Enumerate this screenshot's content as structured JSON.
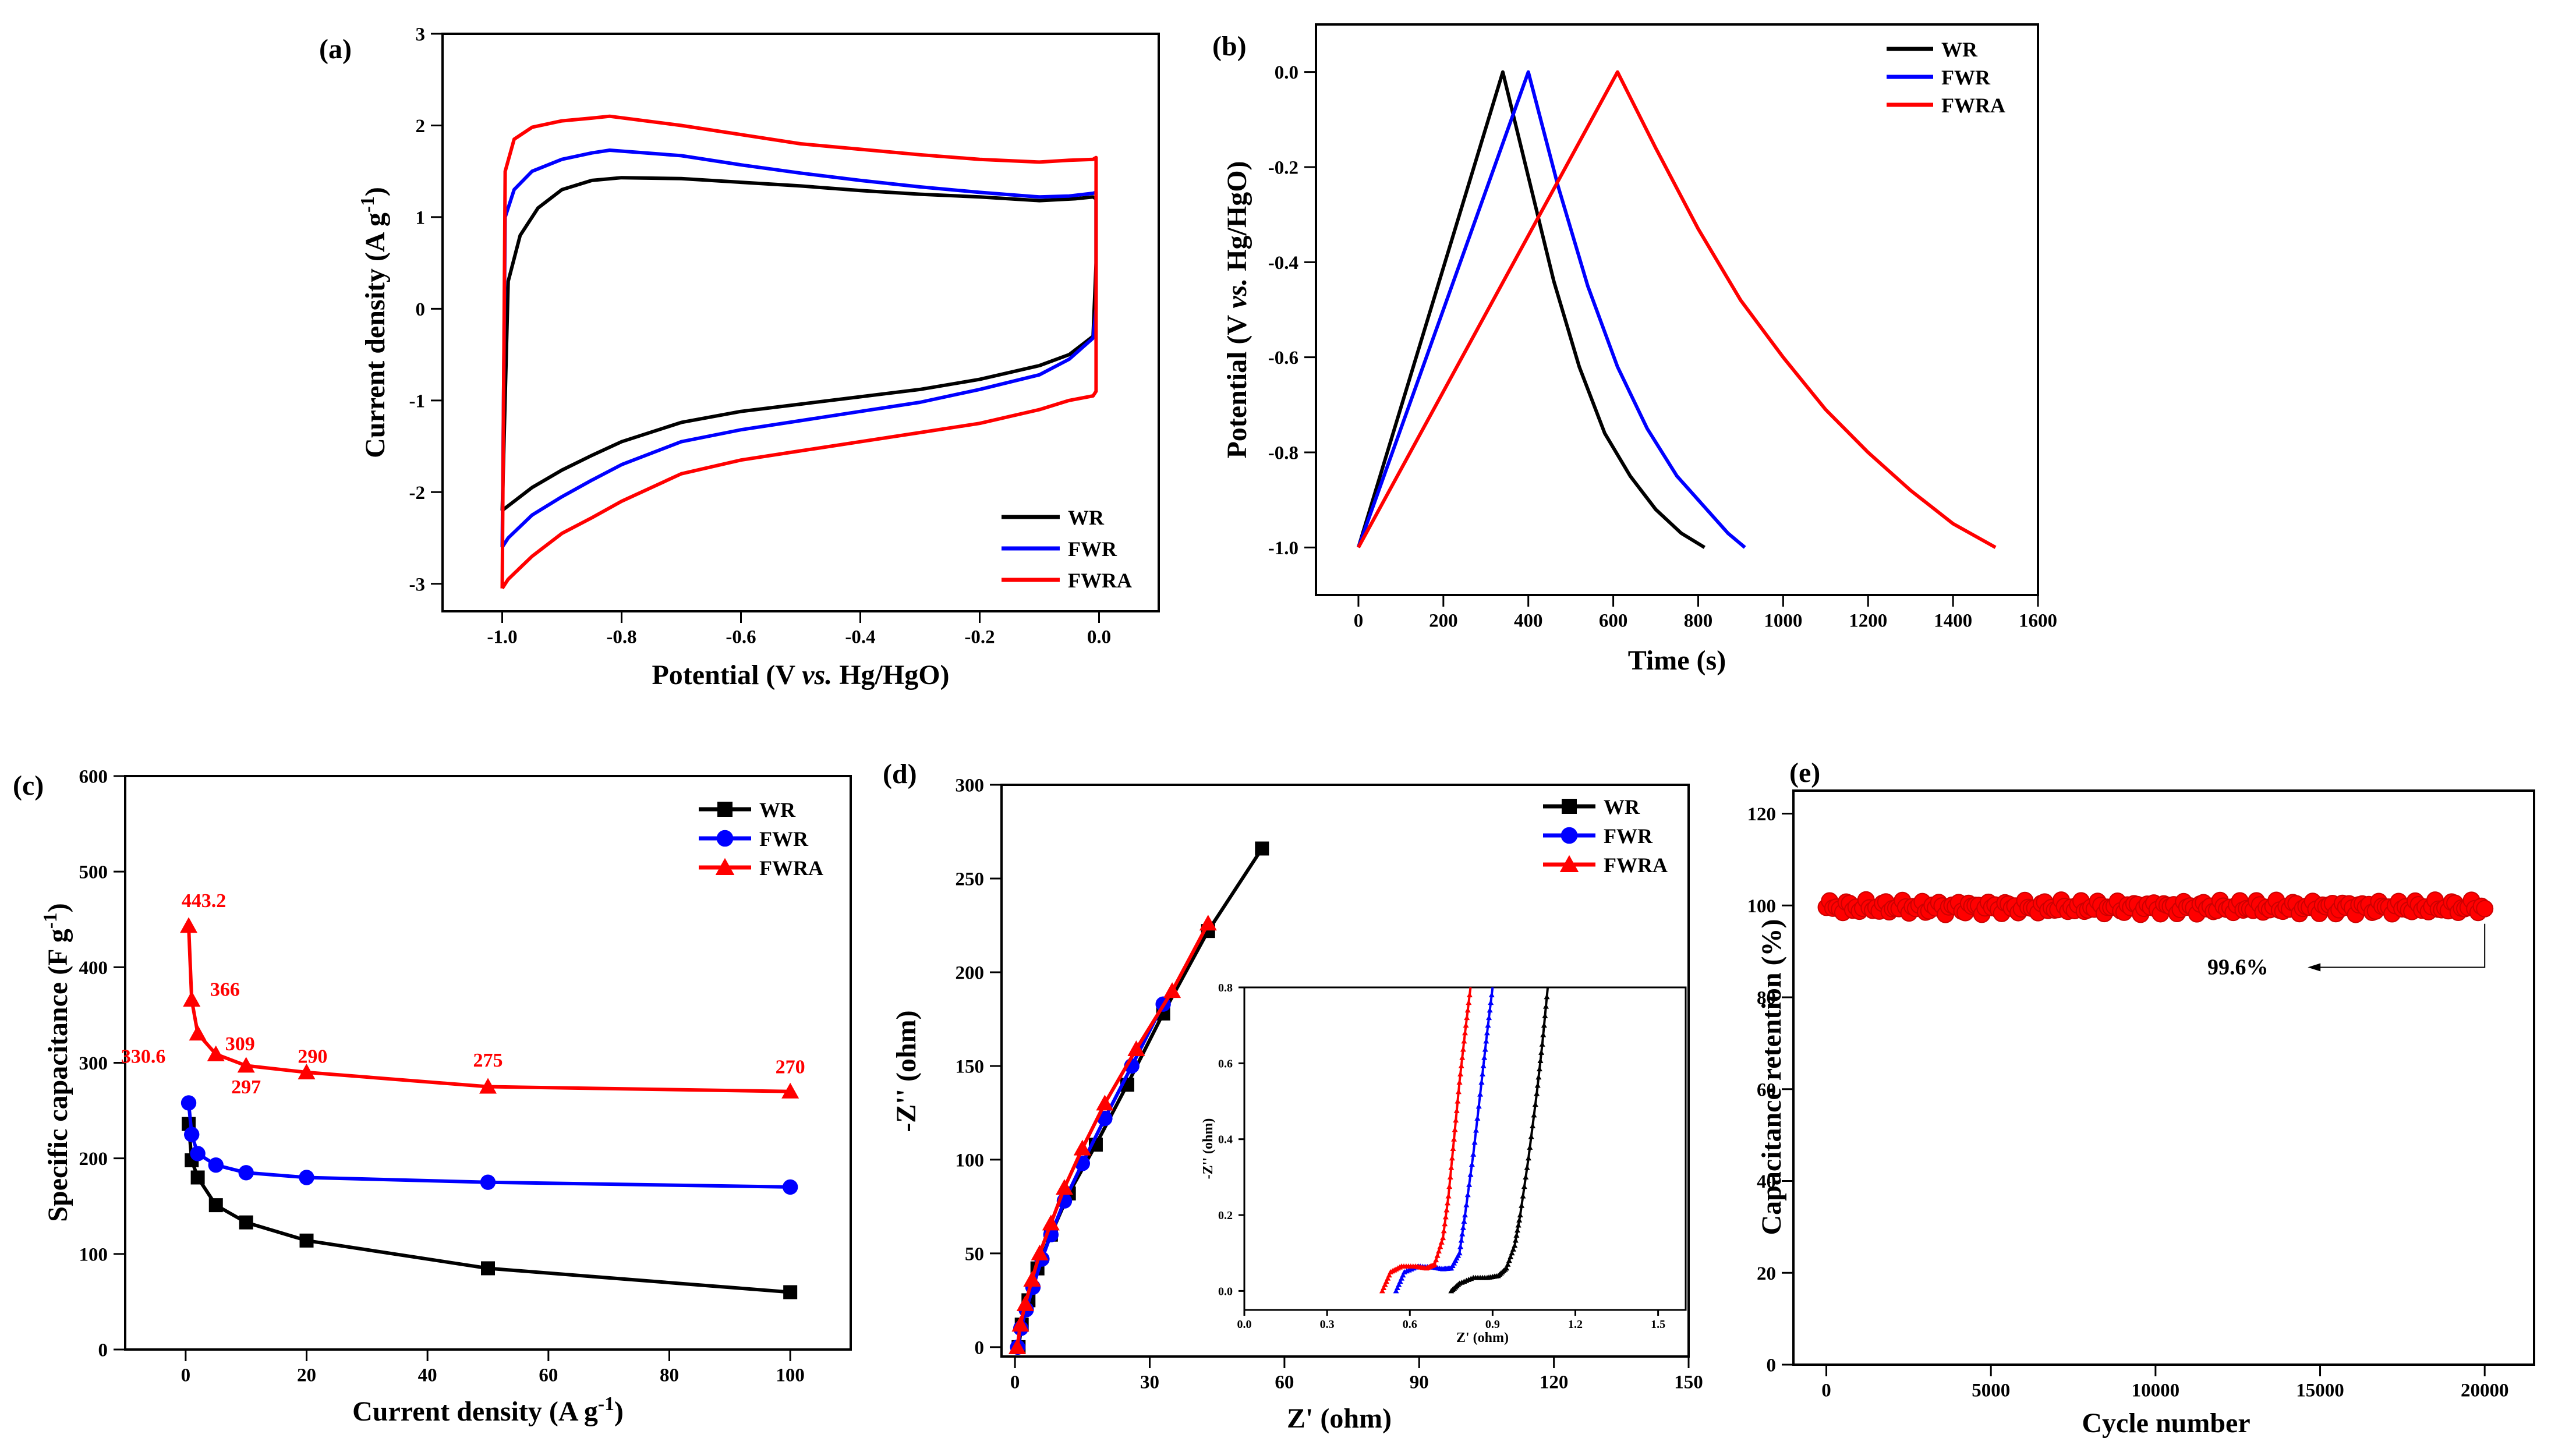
{
  "chart_data": [
    {
      "id": "a",
      "panel_label": "(a)",
      "type": "line",
      "xlabel_parts": [
        "Potential (V ",
        "vs.",
        " Hg/HgO)"
      ],
      "ylabel": "Current density (A g",
      "ylabel_sup": "-1",
      "ylabel_close": ")",
      "xlim": [
        -1.1,
        0.1
      ],
      "ylim": [
        -3.3,
        3
      ],
      "xticks": [
        -1.0,
        -0.8,
        -0.6,
        -0.4,
        -0.2,
        0.0
      ],
      "xtick_labels": [
        "-1.0",
        "-0.8",
        "-0.6",
        "-0.4",
        "-0.2",
        "0.0"
      ],
      "yticks": [
        -3,
        -2,
        -1,
        0,
        1,
        2,
        3
      ],
      "ytick_labels": [
        "-3",
        "-2",
        "-1",
        "0",
        "1",
        "2",
        "3"
      ],
      "legend": "bottom-right",
      "series": [
        {
          "name": "WR",
          "color": "#000000",
          "x": [
            -1.0,
            -0.99,
            -0.97,
            -0.94,
            -0.9,
            -0.85,
            -0.8,
            -0.7,
            -0.6,
            -0.5,
            -0.4,
            -0.3,
            -0.2,
            -0.1,
            -0.04,
            -0.01,
            -0.005,
            -0.005,
            -0.01,
            -0.05,
            -0.1,
            -0.2,
            -0.3,
            -0.4,
            -0.5,
            -0.6,
            -0.7,
            -0.8,
            -0.85,
            -0.9,
            -0.95,
            -0.99,
            -1.0
          ],
          "y": [
            -2.2,
            0.3,
            0.8,
            1.1,
            1.3,
            1.4,
            1.43,
            1.42,
            1.38,
            1.34,
            1.29,
            1.25,
            1.22,
            1.18,
            1.2,
            1.22,
            1.2,
            0.5,
            -0.3,
            -0.5,
            -0.62,
            -0.77,
            -0.88,
            -0.96,
            -1.04,
            -1.12,
            -1.24,
            -1.45,
            -1.6,
            -1.76,
            -1.95,
            -2.15,
            -2.2
          ]
        },
        {
          "name": "FWR",
          "color": "#0000ff",
          "x": [
            -1.0,
            -0.995,
            -0.98,
            -0.95,
            -0.9,
            -0.85,
            -0.82,
            -0.7,
            -0.6,
            -0.5,
            -0.4,
            -0.3,
            -0.2,
            -0.1,
            -0.05,
            -0.01,
            -0.005,
            -0.005,
            -0.01,
            -0.05,
            -0.1,
            -0.2,
            -0.3,
            -0.4,
            -0.5,
            -0.6,
            -0.7,
            -0.8,
            -0.85,
            -0.9,
            -0.95,
            -0.99,
            -1.0
          ],
          "y": [
            -2.6,
            1.0,
            1.3,
            1.5,
            1.63,
            1.7,
            1.73,
            1.67,
            1.57,
            1.48,
            1.4,
            1.33,
            1.27,
            1.22,
            1.23,
            1.26,
            1.27,
            0.0,
            -0.32,
            -0.55,
            -0.72,
            -0.88,
            -1.02,
            -1.12,
            -1.22,
            -1.32,
            -1.45,
            -1.7,
            -1.87,
            -2.05,
            -2.25,
            -2.5,
            -2.6
          ]
        },
        {
          "name": "FWRA",
          "color": "#ff0000",
          "x": [
            -1.0,
            -0.995,
            -0.98,
            -0.95,
            -0.9,
            -0.85,
            -0.82,
            -0.7,
            -0.6,
            -0.5,
            -0.4,
            -0.3,
            -0.2,
            -0.1,
            -0.05,
            -0.01,
            -0.005,
            -0.005,
            -0.01,
            -0.05,
            -0.1,
            -0.2,
            -0.3,
            -0.4,
            -0.5,
            -0.6,
            -0.7,
            -0.8,
            -0.85,
            -0.9,
            -0.95,
            -0.99,
            -1.0
          ],
          "y": [
            -3.05,
            1.5,
            1.85,
            1.98,
            2.05,
            2.08,
            2.1,
            2.0,
            1.9,
            1.8,
            1.74,
            1.68,
            1.63,
            1.6,
            1.62,
            1.63,
            1.65,
            -0.9,
            -0.95,
            -1.0,
            -1.1,
            -1.25,
            -1.35,
            -1.45,
            -1.55,
            -1.65,
            -1.8,
            -2.1,
            -2.28,
            -2.45,
            -2.7,
            -2.95,
            -3.05
          ]
        }
      ]
    },
    {
      "id": "b",
      "panel_label": "(b)",
      "type": "line",
      "xlabel": "Time (s)",
      "ylabel_parts": [
        "Potential (V ",
        "vs.",
        " Hg/HgO)"
      ],
      "xlim": [
        -100,
        1600
      ],
      "ylim": [
        -1.1,
        0.1
      ],
      "xticks": [
        0,
        200,
        400,
        600,
        800,
        1000,
        1200,
        1400,
        1600
      ],
      "xtick_labels": [
        "0",
        "200",
        "400",
        "600",
        "800",
        "1000",
        "1200",
        "1400",
        "1600"
      ],
      "yticks": [
        -1.0,
        -0.8,
        -0.6,
        -0.4,
        -0.2,
        0.0
      ],
      "ytick_labels": [
        "-1.0",
        "-0.8",
        "-0.6",
        "-0.4",
        "-0.2",
        "0.0"
      ],
      "legend": "top-right",
      "series": [
        {
          "name": "WR",
          "color": "#000000",
          "x": [
            0,
            340,
            340,
            400,
            460,
            520,
            580,
            640,
            700,
            760,
            815
          ],
          "y": [
            -1.0,
            0.0,
            0.0,
            -0.22,
            -0.44,
            -0.62,
            -0.76,
            -0.85,
            -0.92,
            -0.97,
            -1.0
          ]
        },
        {
          "name": "FWR",
          "color": "#0000ff",
          "x": [
            0,
            400,
            400,
            470,
            540,
            610,
            680,
            750,
            820,
            870,
            910
          ],
          "y": [
            -1.0,
            0.0,
            0.0,
            -0.24,
            -0.45,
            -0.62,
            -0.75,
            -0.85,
            -0.92,
            -0.97,
            -1.0
          ]
        },
        {
          "name": "FWRA",
          "color": "#ff0000",
          "x": [
            0,
            610,
            610,
            700,
            800,
            900,
            1000,
            1100,
            1200,
            1300,
            1400,
            1500
          ],
          "y": [
            -1.0,
            0.0,
            0.0,
            -0.16,
            -0.33,
            -0.48,
            -0.6,
            -0.71,
            -0.8,
            -0.88,
            -0.95,
            -1.0
          ]
        }
      ]
    },
    {
      "id": "c",
      "panel_label": "(c)",
      "type": "line",
      "xlabel": "Current density (A g",
      "xlabel_sup": "-1",
      "xlabel_close": ")",
      "ylabel": "Specific capacitance (F g",
      "ylabel_sup": "-1",
      "ylabel_close": ")",
      "xlim": [
        -10,
        110
      ],
      "ylim": [
        0,
        600
      ],
      "xticks": [
        0,
        20,
        40,
        60,
        80,
        100
      ],
      "xtick_labels": [
        "0",
        "20",
        "40",
        "60",
        "80",
        "100"
      ],
      "yticks": [
        0,
        100,
        200,
        300,
        400,
        500,
        600
      ],
      "ytick_labels": [
        "0",
        "100",
        "200",
        "300",
        "400",
        "500",
        "600"
      ],
      "legend": "top-right",
      "series": [
        {
          "name": "WR",
          "color": "#000000",
          "marker": "square",
          "x": [
            0.5,
            1,
            2,
            5,
            10,
            20,
            50,
            100
          ],
          "y": [
            236,
            198,
            180,
            151,
            133,
            114,
            85,
            60
          ]
        },
        {
          "name": "FWR",
          "color": "#0000ff",
          "marker": "circle",
          "x": [
            0.5,
            1,
            2,
            5,
            10,
            20,
            50,
            100
          ],
          "y": [
            258,
            225,
            205,
            193,
            185,
            180,
            175,
            170
          ]
        },
        {
          "name": "FWRA",
          "color": "#ff0000",
          "marker": "triangle",
          "x": [
            0.5,
            1,
            2,
            5,
            10,
            20,
            50,
            100
          ],
          "y": [
            443.2,
            366,
            330.6,
            309,
            297,
            290,
            275,
            270
          ]
        }
      ],
      "annotations": [
        {
          "text": "443.2",
          "x": 3,
          "y": 463
        },
        {
          "text": "366",
          "x": 6.5,
          "y": 370
        },
        {
          "text": "330.6",
          "x": -7,
          "y": 300
        },
        {
          "text": "309",
          "x": 9,
          "y": 313
        },
        {
          "text": "297",
          "x": 10,
          "y": 268
        },
        {
          "text": "290",
          "x": 21,
          "y": 300
        },
        {
          "text": "275",
          "x": 50,
          "y": 296
        },
        {
          "text": "270",
          "x": 100,
          "y": 289
        }
      ]
    },
    {
      "id": "d",
      "panel_label": "(d)",
      "type": "line",
      "xlabel": "Z' (ohm)",
      "ylabel": "-Z'' (ohm)",
      "xlim": [
        -3,
        150
      ],
      "ylim": [
        -5,
        300
      ],
      "xticks": [
        0,
        30,
        60,
        90,
        120,
        150
      ],
      "xtick_labels": [
        "0",
        "30",
        "60",
        "90",
        "120",
        "150"
      ],
      "yticks": [
        0,
        50,
        100,
        150,
        200,
        250,
        300
      ],
      "ytick_labels": [
        "0",
        "50",
        "100",
        "150",
        "200",
        "250",
        "300"
      ],
      "legend": "top-right",
      "series": [
        {
          "name": "WR",
          "color": "#000000",
          "marker": "square",
          "x": [
            0.8,
            1.5,
            3,
            5,
            8,
            12,
            18,
            25,
            33,
            43,
            55
          ],
          "y": [
            0,
            12,
            25,
            42,
            60,
            82,
            108,
            140,
            178,
            222,
            266
          ]
        },
        {
          "name": "FWR",
          "color": "#0000ff",
          "marker": "circle",
          "x": [
            0.6,
            1.3,
            2.5,
            4,
            6,
            8,
            11,
            15,
            20,
            26,
            33
          ],
          "y": [
            0,
            10,
            20,
            32,
            47,
            60,
            78,
            98,
            122,
            150,
            183
          ]
        },
        {
          "name": "FWRA",
          "color": "#ff0000",
          "marker": "triangle",
          "x": [
            0.5,
            1.2,
            2.3,
            3.8,
            5.5,
            8,
            11,
            15,
            20,
            27,
            35,
            43
          ],
          "y": [
            0,
            12,
            23,
            36,
            50,
            66,
            85,
            106,
            130,
            159,
            190,
            226
          ]
        }
      ],
      "inset": {
        "xlabel": "Z' (ohm)",
        "ylabel": "-Z'' (ohm)",
        "xlim": [
          0,
          1.6
        ],
        "ylim": [
          -0.05,
          0.8
        ],
        "xticks": [
          0,
          0.3,
          0.6,
          0.9,
          1.2,
          1.5
        ],
        "xtick_labels": [
          "0.0",
          "0.3",
          "0.6",
          "0.9",
          "1.2",
          "1.5"
        ],
        "yticks": [
          0,
          0.2,
          0.4,
          0.6,
          0.8
        ],
        "ytick_labels": [
          "0.0",
          "0.2",
          "0.4",
          "0.6",
          "0.8"
        ],
        "series": [
          {
            "name": "WR",
            "color": "#000000",
            "x": [
              0.75,
              0.78,
              0.83,
              0.88,
              0.92,
              0.95,
              0.98,
              1.0,
              1.03,
              1.06,
              1.08,
              1.1
            ],
            "y": [
              0,
              0.02,
              0.035,
              0.035,
              0.04,
              0.06,
              0.12,
              0.2,
              0.35,
              0.52,
              0.65,
              0.8
            ]
          },
          {
            "name": "FWR",
            "color": "#0000ff",
            "x": [
              0.55,
              0.58,
              0.63,
              0.68,
              0.72,
              0.75,
              0.78,
              0.8,
              0.83,
              0.86,
              0.88,
              0.9
            ],
            "y": [
              0,
              0.05,
              0.065,
              0.063,
              0.058,
              0.06,
              0.1,
              0.2,
              0.36,
              0.55,
              0.68,
              0.8
            ]
          },
          {
            "name": "FWRA",
            "color": "#ff0000",
            "x": [
              0.5,
              0.53,
              0.57,
              0.62,
              0.66,
              0.69,
              0.72,
              0.74,
              0.76,
              0.78,
              0.8,
              0.82
            ],
            "y": [
              0,
              0.05,
              0.065,
              0.065,
              0.06,
              0.07,
              0.14,
              0.25,
              0.4,
              0.55,
              0.68,
              0.8
            ]
          }
        ]
      }
    },
    {
      "id": "e",
      "panel_label": "(e)",
      "type": "scatter",
      "xlabel": "Cycle number",
      "ylabel": "Capacitance retention (%)",
      "xlim": [
        -1000,
        21500
      ],
      "ylim": [
        0,
        125
      ],
      "xticks": [
        0,
        5000,
        10000,
        15000,
        20000
      ],
      "xtick_labels": [
        "0",
        "5000",
        "10000",
        "15000",
        "20000"
      ],
      "yticks": [
        0,
        20,
        40,
        60,
        80,
        100,
        120
      ],
      "ytick_labels": [
        "0",
        "20",
        "40",
        "60",
        "80",
        "100",
        "120"
      ],
      "series": [
        {
          "name": "FWRA",
          "color": "#ff0000",
          "x_start": 0,
          "x_end": 20000,
          "count": 200,
          "mean": 99.6,
          "spread": 1.6
        }
      ],
      "annotation": {
        "text": "99.6%",
        "x": 12500,
        "y": 85
      }
    }
  ]
}
